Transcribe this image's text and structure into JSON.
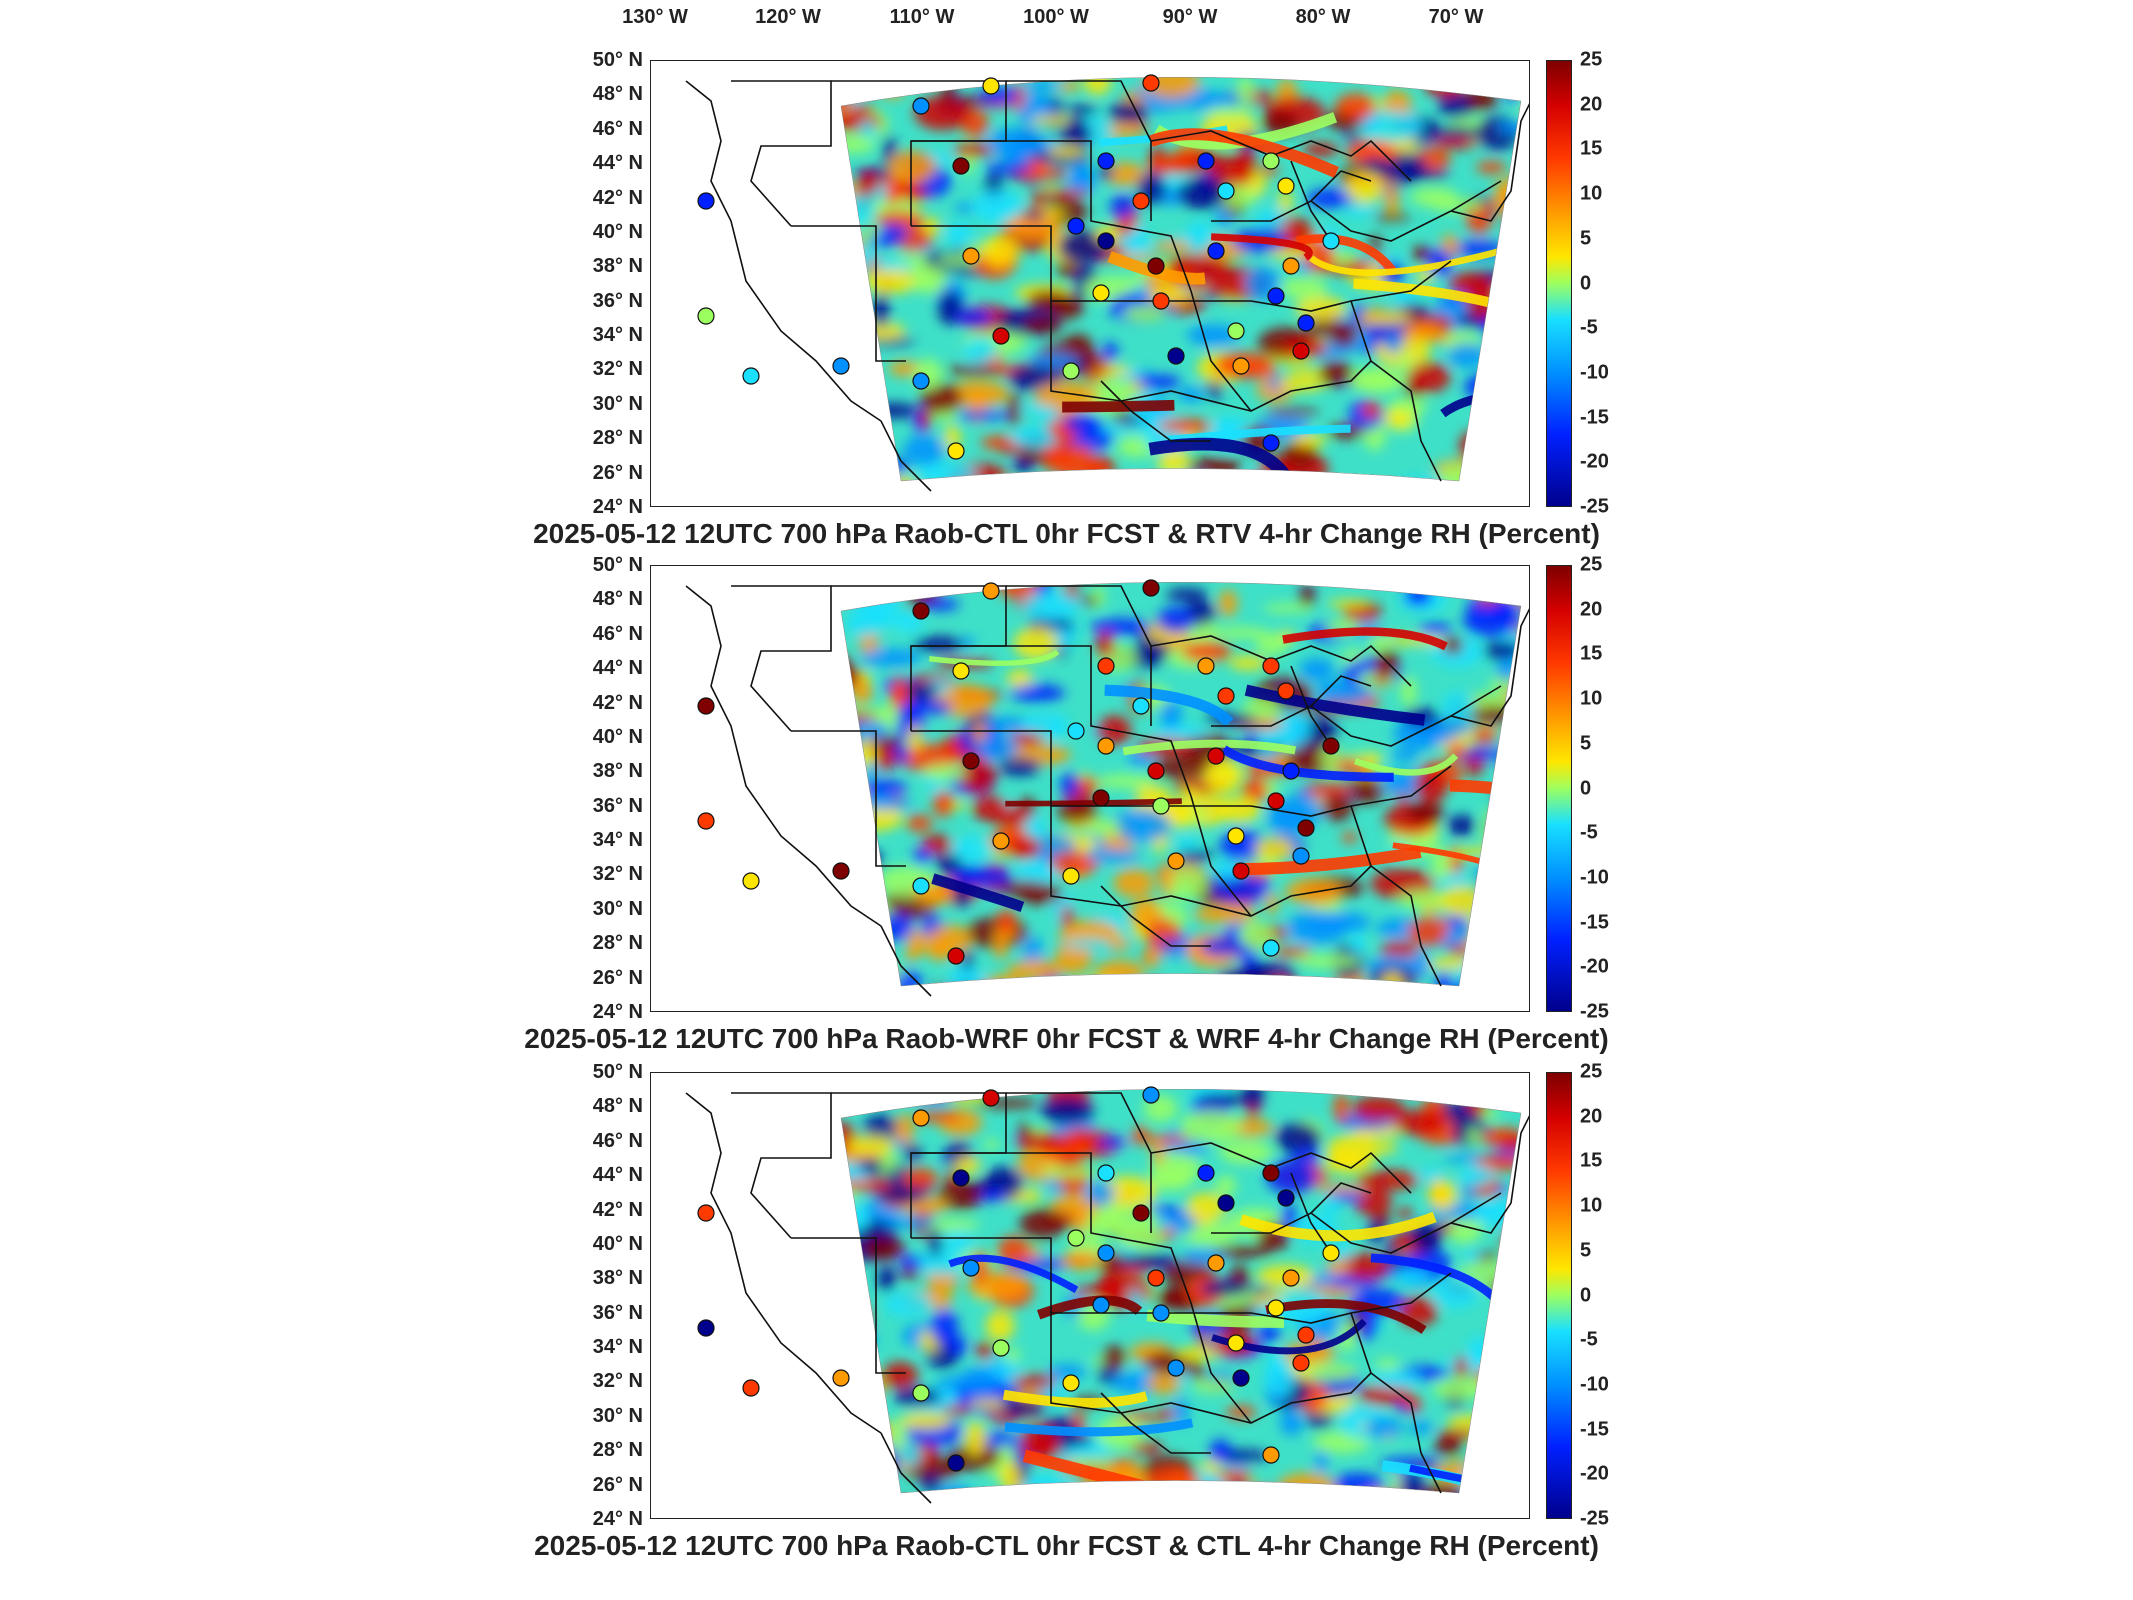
{
  "longitude_labels": [
    "130° W",
    "120° W",
    "110° W",
    "100° W",
    "90° W",
    "80° W",
    "70° W"
  ],
  "latitude_labels": [
    "50° N",
    "48° N",
    "46° N",
    "44° N",
    "42° N",
    "40° N",
    "38° N",
    "36° N",
    "34° N",
    "32° N",
    "30° N",
    "28° N",
    "26° N",
    "24° N"
  ],
  "colorbar_ticks": [
    "25",
    "20",
    "15",
    "10",
    "5",
    "0",
    "-5",
    "-10",
    "-15",
    "-20",
    "-25"
  ],
  "colorbar_range": [
    -25,
    25
  ],
  "colormap": [
    "#00008c",
    "#0020ff",
    "#0090ff",
    "#19e0ff",
    "#9cff60",
    "#ffe600",
    "#ff9a00",
    "#ff3a00",
    "#d40000",
    "#7f0000"
  ],
  "panels": [
    {
      "title": "2025-05-12 12UTC 700 hPa Raob-CTL 0hr FCST & RTV 4-hr Change RH (Percent)"
    },
    {
      "title": "2025-05-12 12UTC 700 hPa Raob-WRF 0hr FCST & WRF 4-hr Change RH (Percent)"
    },
    {
      "title": "2025-05-12 12UTC 700 hPa Raob-CTL 0hr FCST & CTL 4-hr Change RH (Percent)"
    }
  ]
}
